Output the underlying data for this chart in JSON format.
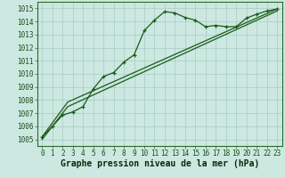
{
  "xlabel": "Graphe pression niveau de la mer (hPa)",
  "bg_color": "#cce8e0",
  "grid_color": "#a8ccc4",
  "line_color": "#1a5a1a",
  "xlim": [
    -0.5,
    23.5
  ],
  "ylim": [
    1004.5,
    1015.5
  ],
  "yticks": [
    1005,
    1006,
    1007,
    1008,
    1009,
    1010,
    1011,
    1012,
    1013,
    1014,
    1015
  ],
  "xticks": [
    0,
    1,
    2,
    3,
    4,
    5,
    6,
    7,
    8,
    9,
    10,
    11,
    12,
    13,
    14,
    15,
    16,
    17,
    18,
    19,
    20,
    21,
    22,
    23
  ],
  "line1_x": [
    0,
    1,
    2,
    3,
    4,
    5,
    6,
    7,
    8,
    9,
    10,
    11,
    12,
    13,
    14,
    15,
    16,
    17,
    18,
    19,
    20,
    21,
    22,
    23
  ],
  "line1_y": [
    1005.2,
    1006.0,
    1006.85,
    1007.1,
    1007.5,
    1008.85,
    1009.8,
    1010.1,
    1010.9,
    1011.45,
    1013.3,
    1014.1,
    1014.75,
    1014.65,
    1014.3,
    1014.1,
    1013.6,
    1013.7,
    1013.6,
    1013.6,
    1014.25,
    1014.55,
    1014.8,
    1014.95
  ],
  "line2_x": [
    0,
    2.5,
    23
  ],
  "line2_y": [
    1005.2,
    1007.85,
    1014.95
  ],
  "line3_x": [
    0,
    2.5,
    23
  ],
  "line3_y": [
    1005.0,
    1007.5,
    1014.8
  ],
  "tick_fontsize": 5.5,
  "xlabel_fontsize": 7,
  "spine_color": "#2a6a2a"
}
